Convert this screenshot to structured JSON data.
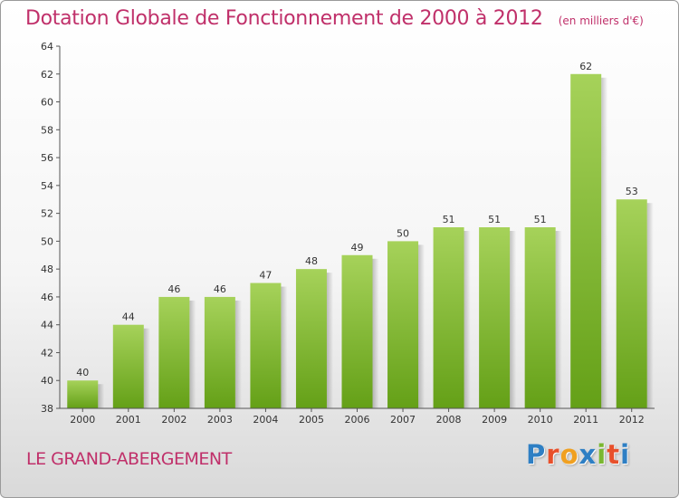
{
  "header": {
    "title": "Dotation Globale de Fonctionnement de 2000 à 2012",
    "subtitle": "(en milliers d'€)"
  },
  "footer": {
    "city": "LE GRAND-ABERGEMENT",
    "logo_text": "Proxiti"
  },
  "colors": {
    "accent": "#c0306a",
    "bar_light": "#a6d25a",
    "bar_dark": "#64a017",
    "logo": [
      "#2e7fc4",
      "#e8502b",
      "#f0a020",
      "#2e7fc4",
      "#7ab730",
      "#e8502b",
      "#2e7fc4"
    ]
  },
  "chart_data": {
    "type": "bar",
    "title": "Dotation Globale de Fonctionnement de 2000 à 2012",
    "subtitle": "(en milliers d'€)",
    "xlabel": "",
    "ylabel": "",
    "categories": [
      "2000",
      "2001",
      "2002",
      "2003",
      "2004",
      "2005",
      "2006",
      "2007",
      "2008",
      "2009",
      "2010",
      "2011",
      "2012"
    ],
    "values": [
      40,
      44,
      46,
      46,
      47,
      48,
      49,
      50,
      51,
      51,
      51,
      62,
      53
    ],
    "labels": [
      "40",
      "44",
      "46",
      "46",
      "47",
      "48",
      "49",
      "50",
      "51",
      "51",
      "51",
      "62",
      "53"
    ],
    "ylim": [
      38,
      64
    ],
    "yticks": [
      "38",
      "40",
      "42",
      "44",
      "46",
      "48",
      "50",
      "52",
      "54",
      "56",
      "58",
      "60",
      "62",
      "64"
    ],
    "grid": false,
    "legend": "none"
  }
}
